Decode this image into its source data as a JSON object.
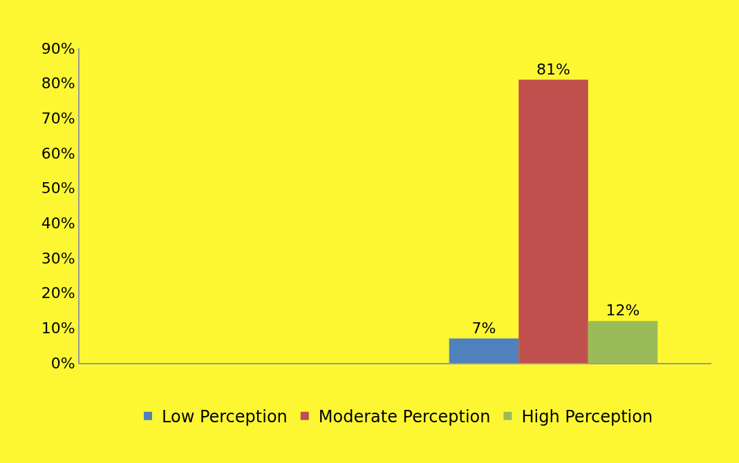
{
  "chart_data": {
    "type": "bar",
    "categories": [
      null,
      null
    ],
    "series": [
      {
        "name": "Low Perception",
        "color": "#4f81bd",
        "values": [
          null,
          7
        ],
        "value_labels": [
          null,
          "7%"
        ]
      },
      {
        "name": "Moderate Perception",
        "color": "#c0504d",
        "values": [
          null,
          81
        ],
        "value_labels": [
          null,
          "81%"
        ]
      },
      {
        "name": "High Perception",
        "color": "#9bbb59",
        "values": [
          null,
          12
        ],
        "value_labels": [
          null,
          "12%"
        ]
      }
    ],
    "ylim": [
      0,
      90
    ],
    "yticks": [
      {
        "value": 0,
        "label": "0%"
      },
      {
        "value": 10,
        "label": "10%"
      },
      {
        "value": 20,
        "label": "20%"
      },
      {
        "value": 30,
        "label": "30%"
      },
      {
        "value": 40,
        "label": "40%"
      },
      {
        "value": 50,
        "label": "50%"
      },
      {
        "value": 60,
        "label": "60%"
      },
      {
        "value": 70,
        "label": "70%"
      },
      {
        "value": 80,
        "label": "80%"
      },
      {
        "value": 90,
        "label": "90%"
      }
    ],
    "legend": "bottom"
  }
}
